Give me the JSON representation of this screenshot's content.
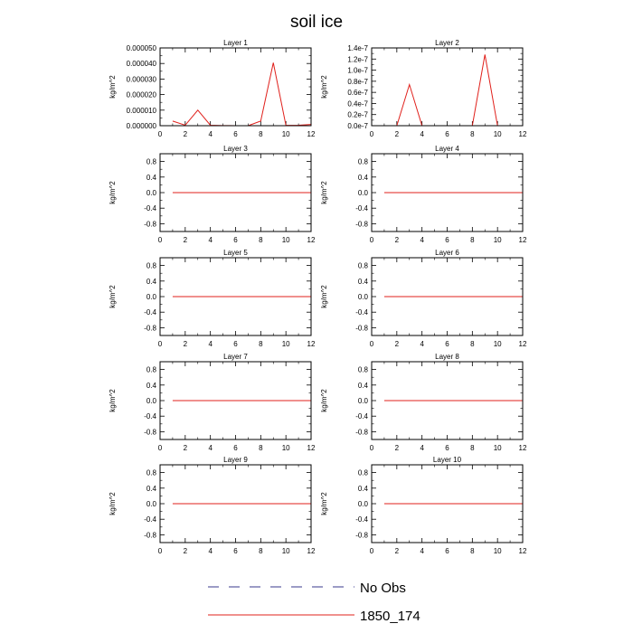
{
  "title": "soil ice",
  "colors": {
    "series": "#e0201b",
    "no_obs": "#3a3a8c",
    "axis": "#000000"
  },
  "legend": [
    {
      "label": "No Obs",
      "style": "dashed",
      "color": "#3a3a8c"
    },
    {
      "label": "1850_174",
      "style": "solid",
      "color": "#e0201b"
    }
  ],
  "chart_data": [
    {
      "type": "line",
      "title": "Layer 1",
      "ylabel": "kg/m^2",
      "xlim": [
        0,
        12
      ],
      "ylim": [
        0,
        5e-05
      ],
      "xticks": [
        0,
        2,
        4,
        6,
        8,
        10,
        12
      ],
      "xtick_labels": [
        "0",
        "2",
        "4",
        "6",
        "8",
        "10",
        "12"
      ],
      "yticks": [
        0,
        1e-05,
        2e-05,
        3e-05,
        4e-05,
        5e-05
      ],
      "ytick_labels": [
        "0.000000",
        "0.000010",
        "0.000020",
        "0.000030",
        "0.000040",
        "0.000050"
      ],
      "series": [
        {
          "name": "1850_174",
          "x": [
            1,
            2,
            3,
            4,
            5,
            6,
            7,
            8,
            9,
            10,
            11,
            12
          ],
          "values": [
            3e-06,
            3e-07,
            1e-05,
            3e-07,
            1e-07,
            0,
            0,
            3e-06,
            4.05e-05,
            2e-07,
            3e-07,
            8e-07
          ]
        }
      ]
    },
    {
      "type": "line",
      "title": "Layer 2",
      "ylabel": "kg/m^2",
      "xlim": [
        0,
        12
      ],
      "ylim": [
        0,
        1.4e-07
      ],
      "xticks": [
        0,
        2,
        4,
        6,
        8,
        10,
        12
      ],
      "xtick_labels": [
        "0",
        "2",
        "4",
        "6",
        "8",
        "10",
        "12"
      ],
      "yticks": [
        0,
        2e-08,
        4e-08,
        6e-08,
        8e-08,
        1e-07,
        1.2e-07,
        1.4e-07
      ],
      "ytick_labels": [
        "0.0e-7",
        "0.2e-7",
        "0.4e-7",
        "0.6e-7",
        "0.8e-7",
        "1.0e-7",
        "1.2e-7",
        "1.4e-7"
      ],
      "series": [
        {
          "name": "1850_174",
          "x": [
            1,
            2,
            3,
            4,
            5,
            6,
            7,
            8,
            9,
            10,
            11,
            12
          ],
          "values": [
            0,
            0,
            7.4e-08,
            0,
            0,
            0,
            0,
            0,
            1.28e-07,
            0,
            0,
            0
          ]
        }
      ]
    },
    {
      "type": "line",
      "title": "Layer 3",
      "ylabel": "kg/m^2",
      "xlim": [
        0,
        12
      ],
      "ylim": [
        -1,
        1
      ],
      "xticks": [
        0,
        2,
        4,
        6,
        8,
        10,
        12
      ],
      "xtick_labels": [
        "0",
        "2",
        "4",
        "6",
        "8",
        "10",
        "12"
      ],
      "yticks": [
        -0.8,
        -0.4,
        0,
        0.4,
        0.8
      ],
      "ytick_labels": [
        "-0.8",
        "-0.4",
        "0.0",
        "0.4",
        "0.8"
      ],
      "series": [
        {
          "name": "1850_174",
          "x": [
            1,
            2,
            3,
            4,
            5,
            6,
            7,
            8,
            9,
            10,
            11,
            12
          ],
          "values": [
            0,
            0,
            0,
            0,
            0,
            0,
            0,
            0,
            0,
            0,
            0,
            0
          ]
        }
      ]
    },
    {
      "type": "line",
      "title": "Layer 4",
      "ylabel": "kg/m^2",
      "xlim": [
        0,
        12
      ],
      "ylim": [
        -1,
        1
      ],
      "xticks": [
        0,
        2,
        4,
        6,
        8,
        10,
        12
      ],
      "xtick_labels": [
        "0",
        "2",
        "4",
        "6",
        "8",
        "10",
        "12"
      ],
      "yticks": [
        -0.8,
        -0.4,
        0,
        0.4,
        0.8
      ],
      "ytick_labels": [
        "-0.8",
        "-0.4",
        "0.0",
        "0.4",
        "0.8"
      ],
      "series": [
        {
          "name": "1850_174",
          "x": [
            1,
            2,
            3,
            4,
            5,
            6,
            7,
            8,
            9,
            10,
            11,
            12
          ],
          "values": [
            0,
            0,
            0,
            0,
            0,
            0,
            0,
            0,
            0,
            0,
            0,
            0
          ]
        }
      ]
    },
    {
      "type": "line",
      "title": "Layer 5",
      "ylabel": "kg/m^2",
      "xlim": [
        0,
        12
      ],
      "ylim": [
        -1,
        1
      ],
      "xticks": [
        0,
        2,
        4,
        6,
        8,
        10,
        12
      ],
      "xtick_labels": [
        "0",
        "2",
        "4",
        "6",
        "8",
        "10",
        "12"
      ],
      "yticks": [
        -0.8,
        -0.4,
        0,
        0.4,
        0.8
      ],
      "ytick_labels": [
        "-0.8",
        "-0.4",
        "0.0",
        "0.4",
        "0.8"
      ],
      "series": [
        {
          "name": "1850_174",
          "x": [
            1,
            2,
            3,
            4,
            5,
            6,
            7,
            8,
            9,
            10,
            11,
            12
          ],
          "values": [
            0,
            0,
            0,
            0,
            0,
            0,
            0,
            0,
            0,
            0,
            0,
            0
          ]
        }
      ]
    },
    {
      "type": "line",
      "title": "Layer 6",
      "ylabel": "kg/m^2",
      "xlim": [
        0,
        12
      ],
      "ylim": [
        -1,
        1
      ],
      "xticks": [
        0,
        2,
        4,
        6,
        8,
        10,
        12
      ],
      "xtick_labels": [
        "0",
        "2",
        "4",
        "6",
        "8",
        "10",
        "12"
      ],
      "yticks": [
        -0.8,
        -0.4,
        0,
        0.4,
        0.8
      ],
      "ytick_labels": [
        "-0.8",
        "-0.4",
        "0.0",
        "0.4",
        "0.8"
      ],
      "series": [
        {
          "name": "1850_174",
          "x": [
            1,
            2,
            3,
            4,
            5,
            6,
            7,
            8,
            9,
            10,
            11,
            12
          ],
          "values": [
            0,
            0,
            0,
            0,
            0,
            0,
            0,
            0,
            0,
            0,
            0,
            0
          ]
        }
      ]
    },
    {
      "type": "line",
      "title": "Layer 7",
      "ylabel": "kg/m^2",
      "xlim": [
        0,
        12
      ],
      "ylim": [
        -1,
        1
      ],
      "xticks": [
        0,
        2,
        4,
        6,
        8,
        10,
        12
      ],
      "xtick_labels": [
        "0",
        "2",
        "4",
        "6",
        "8",
        "10",
        "12"
      ],
      "yticks": [
        -0.8,
        -0.4,
        0,
        0.4,
        0.8
      ],
      "ytick_labels": [
        "-0.8",
        "-0.4",
        "0.0",
        "0.4",
        "0.8"
      ],
      "series": [
        {
          "name": "1850_174",
          "x": [
            1,
            2,
            3,
            4,
            5,
            6,
            7,
            8,
            9,
            10,
            11,
            12
          ],
          "values": [
            0,
            0,
            0,
            0,
            0,
            0,
            0,
            0,
            0,
            0,
            0,
            0
          ]
        }
      ]
    },
    {
      "type": "line",
      "title": "Layer 8",
      "ylabel": "kg/m^2",
      "xlim": [
        0,
        12
      ],
      "ylim": [
        -1,
        1
      ],
      "xticks": [
        0,
        2,
        4,
        6,
        8,
        10,
        12
      ],
      "xtick_labels": [
        "0",
        "2",
        "4",
        "6",
        "8",
        "10",
        "12"
      ],
      "yticks": [
        -0.8,
        -0.4,
        0,
        0.4,
        0.8
      ],
      "ytick_labels": [
        "-0.8",
        "-0.4",
        "0.0",
        "0.4",
        "0.8"
      ],
      "series": [
        {
          "name": "1850_174",
          "x": [
            1,
            2,
            3,
            4,
            5,
            6,
            7,
            8,
            9,
            10,
            11,
            12
          ],
          "values": [
            0,
            0,
            0,
            0,
            0,
            0,
            0,
            0,
            0,
            0,
            0,
            0
          ]
        }
      ]
    },
    {
      "type": "line",
      "title": "Layer 9",
      "ylabel": "kg/m^2",
      "xlim": [
        0,
        12
      ],
      "ylim": [
        -1,
        1
      ],
      "xticks": [
        0,
        2,
        4,
        6,
        8,
        10,
        12
      ],
      "xtick_labels": [
        "0",
        "2",
        "4",
        "6",
        "8",
        "10",
        "12"
      ],
      "yticks": [
        -0.8,
        -0.4,
        0,
        0.4,
        0.8
      ],
      "ytick_labels": [
        "-0.8",
        "-0.4",
        "0.0",
        "0.4",
        "0.8"
      ],
      "series": [
        {
          "name": "1850_174",
          "x": [
            1,
            2,
            3,
            4,
            5,
            6,
            7,
            8,
            9,
            10,
            11,
            12
          ],
          "values": [
            0,
            0,
            0,
            0,
            0,
            0,
            0,
            0,
            0,
            0,
            0,
            0
          ]
        }
      ]
    },
    {
      "type": "line",
      "title": "Layer 10",
      "ylabel": "kg/m^2",
      "xlim": [
        0,
        12
      ],
      "ylim": [
        -1,
        1
      ],
      "xticks": [
        0,
        2,
        4,
        6,
        8,
        10,
        12
      ],
      "xtick_labels": [
        "0",
        "2",
        "4",
        "6",
        "8",
        "10",
        "12"
      ],
      "yticks": [
        -0.8,
        -0.4,
        0,
        0.4,
        0.8
      ],
      "ytick_labels": [
        "-0.8",
        "-0.4",
        "0.0",
        "0.4",
        "0.8"
      ],
      "series": [
        {
          "name": "1850_174",
          "x": [
            1,
            2,
            3,
            4,
            5,
            6,
            7,
            8,
            9,
            10,
            11,
            12
          ],
          "values": [
            0,
            0,
            0,
            0,
            0,
            0,
            0,
            0,
            0,
            0,
            0,
            0
          ]
        }
      ]
    }
  ]
}
